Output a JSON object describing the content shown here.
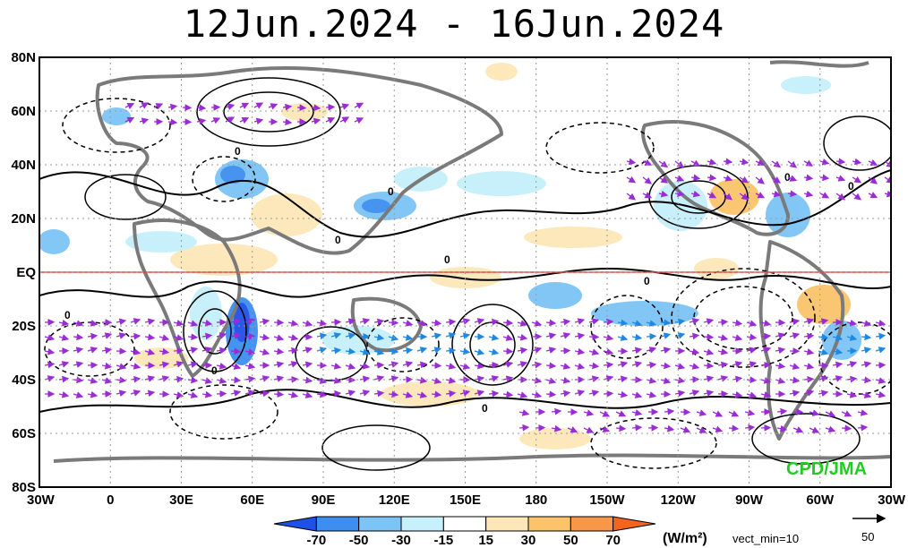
{
  "title": "12Jun.2024 - 16Jun.2024",
  "lat_ticks": [
    "80N",
    "60N",
    "40N",
    "20N",
    "EQ",
    "20S",
    "40S",
    "60S",
    "80S"
  ],
  "lon_ticks": [
    "30W",
    "0",
    "30E",
    "60E",
    "90E",
    "120E",
    "150E",
    "180",
    "150W",
    "120W",
    "90W",
    "60W",
    "30W"
  ],
  "colorbar": {
    "labels": [
      "-70",
      "-50",
      "-30",
      "-15",
      "15",
      "30",
      "50",
      "70"
    ],
    "colors": [
      "#1f50e8",
      "#3d8ef0",
      "#7cc4f6",
      "#c6f0fb",
      "#ffffff",
      "#fde7b8",
      "#fbc36a",
      "#f6974a",
      "#f2651f"
    ],
    "units": "(W/m²)"
  },
  "vector_info": "vect_min=10",
  "reference_vector": "50",
  "credit": "CPD/JMA",
  "contour_label": "0"
}
